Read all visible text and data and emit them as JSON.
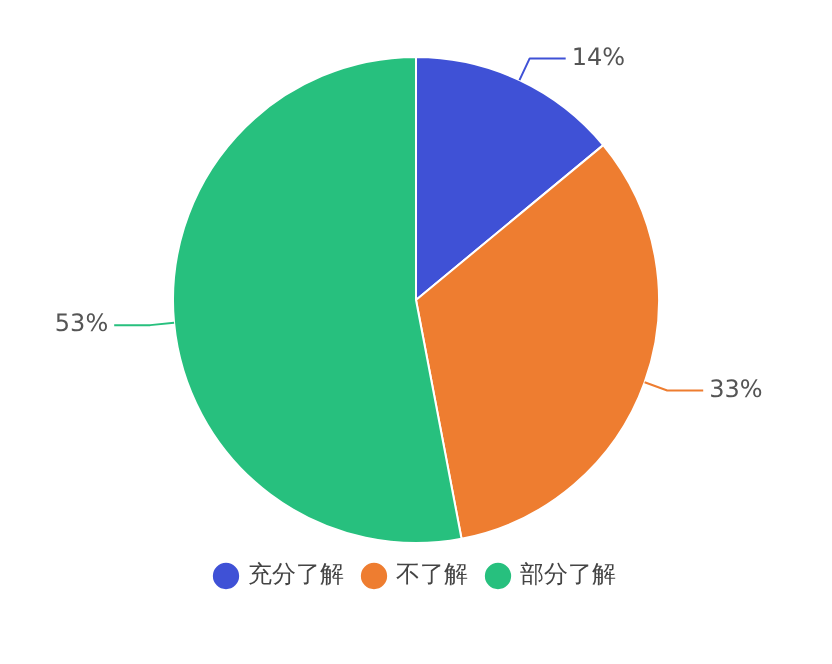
{
  "chart_data": {
    "type": "pie",
    "categories": [
      "充分了解",
      "不了解",
      "部分了解"
    ],
    "values": [
      14,
      33,
      53
    ],
    "colors": [
      "#3f51d6",
      "#ee7d30",
      "#27c07e"
    ],
    "value_labels": [
      "14%",
      "33%",
      "53%"
    ],
    "legend": "bottom"
  }
}
